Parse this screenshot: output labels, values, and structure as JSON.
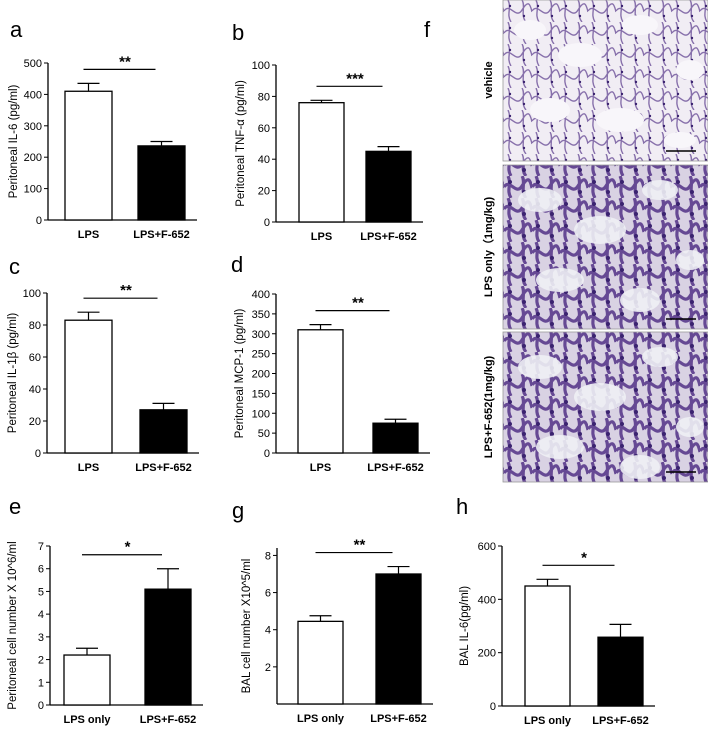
{
  "chart_data": [
    {
      "panel": "a",
      "type": "bar",
      "ylabel": "Peritoneal IL-6 (pg/ml)",
      "categories": [
        "LPS",
        "LPS+F-652"
      ],
      "values": [
        410,
        236
      ],
      "errors": [
        25,
        14
      ],
      "ylim": [
        0,
        500
      ],
      "yticks": [
        "0",
        "100",
        "200",
        "300",
        "400",
        "500"
      ],
      "significance": "**"
    },
    {
      "panel": "b",
      "type": "bar",
      "ylabel": "Peritoneal TNF-α (pg/ml)",
      "categories": [
        "LPS",
        "LPS+F-652"
      ],
      "values": [
        76,
        45
      ],
      "errors": [
        1.5,
        3
      ],
      "ylim": [
        0,
        100
      ],
      "yticks": [
        "0",
        "20",
        "40",
        "60",
        "80",
        "100"
      ],
      "significance": "***"
    },
    {
      "panel": "c",
      "type": "bar",
      "ylabel": "Peritoneal IL-1β (pg/ml)",
      "categories": [
        "LPS",
        "LPS+F-652"
      ],
      "values": [
        83,
        27
      ],
      "errors": [
        5,
        4
      ],
      "ylim": [
        0,
        100
      ],
      "yticks": [
        "0",
        "20",
        "40",
        "60",
        "80",
        "100"
      ],
      "significance": "**"
    },
    {
      "panel": "d",
      "type": "bar",
      "ylabel": "Peritoneal MCP-1 (pg/ml)",
      "categories": [
        "LPS",
        "LPS+F-652"
      ],
      "values": [
        310,
        75
      ],
      "errors": [
        13,
        10
      ],
      "ylim": [
        0,
        400
      ],
      "yticks": [
        "0",
        "50",
        "100",
        "150",
        "200",
        "250",
        "300",
        "350",
        "400"
      ],
      "significance": "**"
    },
    {
      "panel": "e",
      "type": "bar",
      "ylabel": "Peritoneal cell number X 10^6/ml",
      "categories": [
        "LPS only",
        "LPS+F-652"
      ],
      "values": [
        2.2,
        5.1
      ],
      "errors": [
        0.3,
        0.9
      ],
      "ylim": [
        0,
        7
      ],
      "yticks": [
        "0",
        "1",
        "2",
        "3",
        "4",
        "5",
        "6",
        "7"
      ],
      "significance": "*"
    },
    {
      "panel": "g",
      "type": "bar",
      "ylabel": "BAL cell number X10^5/ml",
      "categories": [
        "LPS only",
        "LPS+F-652"
      ],
      "values": [
        4.45,
        7.0
      ],
      "errors": [
        0.3,
        0.4
      ],
      "ylim": [
        0,
        8.4
      ],
      "yticks": [
        "2",
        "4",
        "6",
        "8"
      ],
      "significance": "**"
    },
    {
      "panel": "h",
      "type": "bar",
      "ylabel": "BAL IL-6(pg/ml)",
      "categories": [
        "LPS only",
        "LPS+F-652"
      ],
      "values": [
        450,
        258
      ],
      "errors": [
        25,
        48
      ],
      "ylim": [
        0,
        600
      ],
      "yticks": [
        "0",
        "200",
        "400",
        "600"
      ],
      "significance": "*"
    }
  ],
  "histology": {
    "panel": "f",
    "rows": [
      "vehicle",
      "LPS only（1mg/kg)",
      "LPS+F-652(1mg/kg)"
    ]
  },
  "colors": {
    "bar_control": "#ffffff",
    "bar_treated": "#000000",
    "tissue_light": "#ece6f2",
    "tissue_stain": "#5a3a8c"
  }
}
